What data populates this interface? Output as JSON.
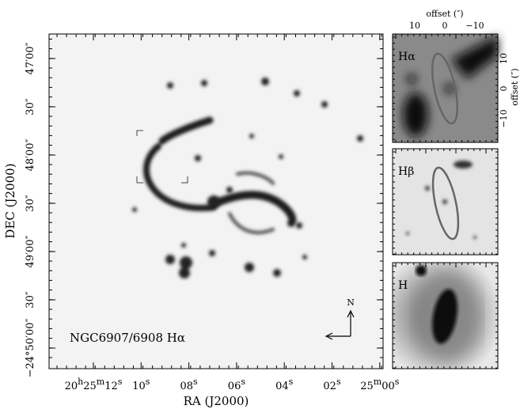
{
  "main_panel": {
    "label": "NGC6907/6908 Hα",
    "compass": "N"
  },
  "x_axis": {
    "title": "RA (J2000)",
    "ticks": [
      [
        "20",
        "h",
        "25",
        "m",
        "12",
        "s"
      ],
      [
        "10",
        "s"
      ],
      [
        "08",
        "s"
      ],
      [
        "06",
        "s"
      ],
      [
        "04",
        "s"
      ],
      [
        "02",
        "s"
      ],
      [
        "25",
        "m",
        "00",
        "s"
      ]
    ]
  },
  "y_axis": {
    "title": "DEC (J2000)",
    "ticks": [
      "−24°50′00″",
      "30″",
      "49′00″",
      "30″",
      "48′00″",
      "30″",
      "47′00″"
    ]
  },
  "insets": [
    {
      "label": "Hα"
    },
    {
      "label": "Hβ"
    },
    {
      "label": "H"
    }
  ],
  "offset_axes": {
    "top_title": "offset (″)",
    "top_ticks": [
      "10",
      "0",
      "−10"
    ],
    "right_title": "offset (″)",
    "right_ticks": [
      "10",
      "0",
      "−10"
    ]
  }
}
